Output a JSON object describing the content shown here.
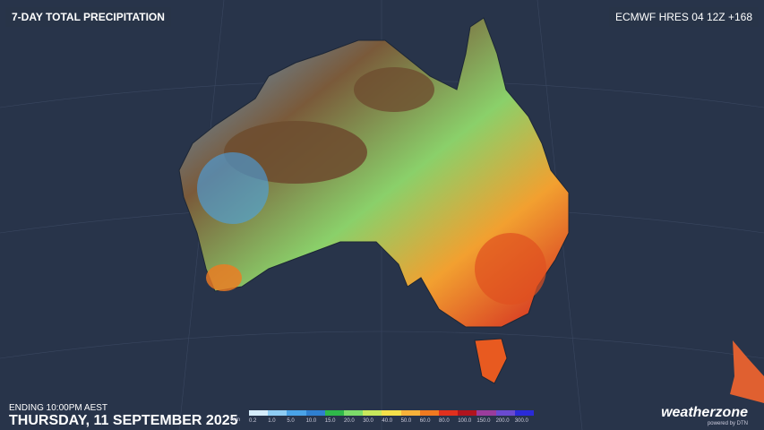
{
  "header": {
    "title": "7-DAY TOTAL PRECIPITATION",
    "model": "ECMWF HRES 04 12Z +168"
  },
  "footer": {
    "ending": "ENDING 10:00PM AEST",
    "date": "THURSDAY, 11 SEPTEMBER 2025"
  },
  "legend": {
    "unit": "mm",
    "items": [
      {
        "label": "0.2",
        "color": "#d6ecfb"
      },
      {
        "label": "1.0",
        "color": "#8fcdf4"
      },
      {
        "label": "5.0",
        "color": "#4aa3e8"
      },
      {
        "label": "10.0",
        "color": "#2f7fd0"
      },
      {
        "label": "15.0",
        "color": "#2fb84a"
      },
      {
        "label": "20.0",
        "color": "#7ddc6a"
      },
      {
        "label": "30.0",
        "color": "#c8e85c"
      },
      {
        "label": "40.0",
        "color": "#f5e04a"
      },
      {
        "label": "50.0",
        "color": "#f7b23a"
      },
      {
        "label": "60.0",
        "color": "#f07a20"
      },
      {
        "label": "80.0",
        "color": "#e0301e"
      },
      {
        "label": "100.0",
        "color": "#b0141e"
      },
      {
        "label": "150.0",
        "color": "#9a3c9c"
      },
      {
        "label": "200.0",
        "color": "#6a4ad0"
      },
      {
        "label": "300.0",
        "color": "#2a2ad8"
      }
    ]
  },
  "brand": {
    "name": "weatherzone",
    "tagline": "powered by DTN"
  }
}
